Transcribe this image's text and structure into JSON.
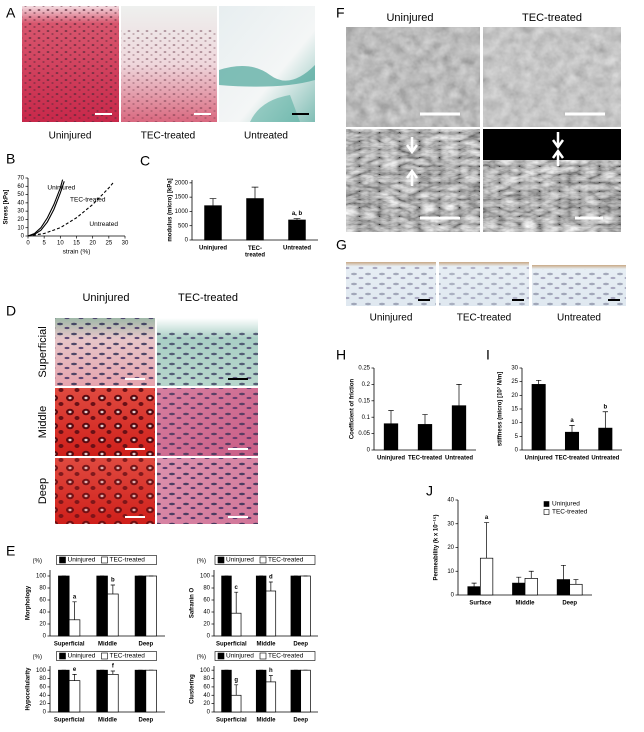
{
  "figure": {
    "A": {
      "letter": "A",
      "labels": [
        "Uninjured",
        "TEC-treated",
        "Untreated"
      ]
    },
    "B": {
      "letter": "B"
    },
    "C": {
      "letter": "C"
    },
    "D": {
      "letter": "D",
      "columns": [
        "Uninjured",
        "TEC-treated"
      ],
      "rows": [
        "Superficial",
        "Middle",
        "Deep"
      ]
    },
    "E": {
      "letter": "E"
    },
    "F": {
      "letter": "F",
      "columns": [
        "Uninjured",
        "TEC-treated"
      ]
    },
    "G": {
      "letter": "G",
      "labels": [
        "Uninjured",
        "TEC-treated",
        "Untreated"
      ]
    },
    "H": {
      "letter": "H"
    },
    "I": {
      "letter": "I"
    },
    "J": {
      "letter": "J"
    }
  },
  "chart_data": [
    {
      "type": "line",
      "ylabel": "Stress [kPa]",
      "xlabel": "strain (%)",
      "xlim": [
        0,
        30
      ],
      "ylim": [
        0,
        70
      ],
      "xticks": [
        0,
        5,
        10,
        15,
        20,
        25,
        30
      ],
      "yticks": [
        0,
        10,
        20,
        30,
        40,
        50,
        60,
        70
      ],
      "series": [
        {
          "name": "Uninjured",
          "color": "#000000",
          "dashed": false,
          "x": [
            0,
            2,
            4,
            6,
            8,
            10,
            10.7
          ],
          "values": [
            0,
            3,
            10,
            22,
            38,
            58,
            68
          ]
        },
        {
          "name": "TEC-treated",
          "color": "#000000",
          "dashed": false,
          "x": [
            0,
            2,
            4,
            6,
            8,
            10,
            11.2
          ],
          "values": [
            0,
            2,
            7,
            17,
            32,
            52,
            66
          ]
        },
        {
          "name": "Untreated",
          "color": "#000000",
          "dashed": true,
          "x": [
            0,
            5,
            10,
            15,
            20,
            25,
            26.5
          ],
          "values": [
            0,
            3,
            10,
            22,
            38,
            58,
            65
          ]
        }
      ]
    },
    {
      "type": "bar",
      "ylabel": "modulus (micro) [kPa]",
      "categories": [
        "Uninjured",
        "TEC-\ntreated",
        "Untreated"
      ],
      "ylim": [
        0,
        2100
      ],
      "yticks": [
        0,
        500,
        1000,
        1500,
        2000
      ],
      "color": "#000000",
      "values": [
        1200,
        1450,
        700
      ],
      "errors": [
        250,
        400,
        50
      ],
      "labels": [
        null,
        null,
        "a, b"
      ]
    },
    {
      "type": "bar",
      "ylabel": "Morphology",
      "yunit": "(%)",
      "categories": [
        "Superficial",
        "Middle",
        "Deep"
      ],
      "ylim": [
        0,
        110
      ],
      "yticks": [
        0,
        20,
        40,
        60,
        80,
        100
      ],
      "legend": "top",
      "series": [
        {
          "name": "Uninjured",
          "color": "#000000",
          "values": [
            100,
            100,
            100
          ],
          "errors": [
            0,
            0,
            0
          ],
          "labels": [
            null,
            null,
            null
          ]
        },
        {
          "name": "TEC-treated",
          "color": "#ffffff",
          "values": [
            27,
            70,
            100
          ],
          "errors": [
            30,
            15,
            0
          ],
          "labels": [
            "a",
            "b",
            null
          ]
        }
      ]
    },
    {
      "type": "bar",
      "ylabel": "Safranin O",
      "yunit": "(%)",
      "categories": [
        "Superficial",
        "Middle",
        "Deep"
      ],
      "ylim": [
        0,
        110
      ],
      "yticks": [
        0,
        20,
        40,
        60,
        80,
        100
      ],
      "legend": "top",
      "series": [
        {
          "name": "Uninjured",
          "color": "#000000",
          "values": [
            100,
            100,
            100
          ],
          "errors": [
            0,
            0,
            0
          ],
          "labels": [
            null,
            null,
            null
          ]
        },
        {
          "name": "TEC-treated",
          "color": "#ffffff",
          "values": [
            38,
            75,
            100
          ],
          "errors": [
            35,
            15,
            0
          ],
          "labels": [
            "c",
            "d",
            null
          ]
        }
      ]
    },
    {
      "type": "bar",
      "ylabel": "Hypocellularity",
      "yunit": "(%)",
      "categories": [
        "Superficial",
        "Middle",
        "Deep"
      ],
      "ylim": [
        0,
        110
      ],
      "yticks": [
        0,
        20,
        40,
        60,
        80,
        100
      ],
      "legend": "top",
      "series": [
        {
          "name": "Uninjured",
          "color": "#000000",
          "values": [
            100,
            100,
            100
          ],
          "errors": [
            0,
            0,
            0
          ],
          "labels": [
            null,
            null,
            null
          ]
        },
        {
          "name": "TEC-treated",
          "color": "#ffffff",
          "values": [
            75,
            90,
            100
          ],
          "errors": [
            15,
            8,
            0
          ],
          "labels": [
            "e",
            "f",
            null
          ]
        }
      ]
    },
    {
      "type": "bar",
      "ylabel": "Clustering",
      "yunit": "(%)",
      "categories": [
        "Superficial",
        "Middle",
        "Deep"
      ],
      "ylim": [
        0,
        110
      ],
      "yticks": [
        0,
        20,
        40,
        60,
        80,
        100
      ],
      "legend": "top",
      "series": [
        {
          "name": "Uninjured",
          "color": "#000000",
          "values": [
            100,
            100,
            100
          ],
          "errors": [
            0,
            0,
            0
          ],
          "labels": [
            null,
            null,
            null
          ]
        },
        {
          "name": "TEC-treated",
          "color": "#ffffff",
          "values": [
            40,
            72,
            100
          ],
          "errors": [
            25,
            15,
            0
          ],
          "labels": [
            "g",
            "h",
            null
          ]
        }
      ]
    },
    {
      "type": "bar",
      "ylabel": "Coefficient of friction",
      "categories": [
        "Uninjured",
        "TEC-treated",
        "Untreated"
      ],
      "ylim": [
        0,
        0.25
      ],
      "yticks": [
        0,
        0.05,
        0.1,
        0.15,
        0.2,
        0.25
      ],
      "color": "#000000",
      "values": [
        0.08,
        0.078,
        0.135
      ],
      "errors": [
        0.04,
        0.03,
        0.065
      ],
      "labels": [
        null,
        null,
        null
      ]
    },
    {
      "type": "bar",
      "ylabel": "stiffness (micro) [10⁷ N/m]",
      "categories": [
        "Uninjured",
        "TEC-treated",
        "Untreated"
      ],
      "ylim": [
        0,
        30
      ],
      "yticks": [
        0,
        5,
        10,
        15,
        20,
        25,
        30
      ],
      "color": "#000000",
      "values": [
        24,
        6.5,
        8
      ],
      "errors": [
        1.5,
        2.5,
        6
      ],
      "labels": [
        null,
        "a",
        "b"
      ]
    },
    {
      "type": "bar",
      "ylabel": "Permeability (k x 10⁻¹⁵)",
      "categories": [
        "Surface",
        "Middle",
        "Deep"
      ],
      "ylim": [
        0,
        40
      ],
      "yticks": [
        0,
        10,
        20,
        30,
        40
      ],
      "legend": "upper right",
      "series": [
        {
          "name": "Uninjured",
          "color": "#000000",
          "values": [
            3.5,
            5,
            6.5
          ],
          "errors": [
            1.5,
            2.5,
            6
          ],
          "labels": [
            null,
            null,
            null
          ]
        },
        {
          "name": "TEC-treated",
          "color": "#ffffff",
          "values": [
            15.5,
            7,
            4.5
          ],
          "errors": [
            15,
            3,
            2
          ],
          "labels": [
            "a",
            null,
            null
          ]
        }
      ]
    }
  ]
}
